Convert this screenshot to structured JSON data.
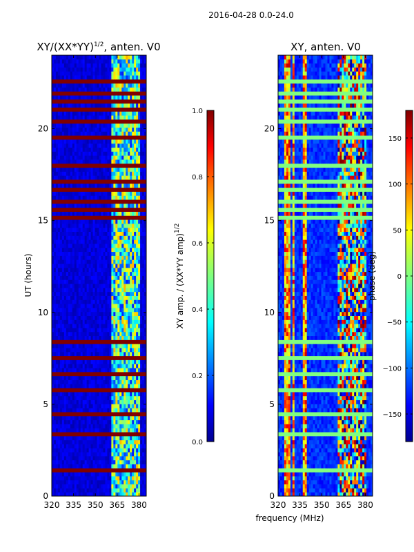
{
  "suptitle": "2016-04-28 0.0-24.0",
  "shared_xlabel": "frequency (MHz)",
  "chart_data": [
    {
      "type": "heatmap",
      "title_main": "XY/(XX*YY)",
      "title_sup": "1/2",
      "title_rest": ", anten. V0",
      "xlabel": "",
      "ylabel": "UT (hours)",
      "xlim": [
        320,
        385
      ],
      "ylim": [
        0,
        24
      ],
      "xticks": [
        320,
        335,
        350,
        365,
        380
      ],
      "yticks": [
        0,
        5,
        10,
        15,
        20
      ],
      "colormap": "jet",
      "colorbar": {
        "label_main": "XY amp. / (XX*YY amp)",
        "label_sup": "1/2",
        "range": [
          0.0,
          1.0
        ],
        "ticks": [
          "0.0",
          "0.2",
          "0.4",
          "0.6",
          "0.8",
          "1.0"
        ],
        "tick_values": [
          0.0,
          0.2,
          0.4,
          0.6,
          0.8,
          1.0
        ]
      },
      "flagged_hours": [
        1.5,
        3.4,
        4.4,
        5.8,
        6.7,
        7.5,
        8.3,
        15.2,
        15.6,
        16.0,
        16.6,
        17.2,
        18.0,
        19.5,
        20.5,
        21.0,
        21.5,
        22.0,
        22.5
      ],
      "band_edges_mhz": [
        361,
        365,
        369,
        373,
        377
      ]
    },
    {
      "type": "heatmap",
      "title_main": "XY, anten. V0",
      "xlabel": "",
      "ylabel": "",
      "xlim": [
        320,
        385
      ],
      "ylim": [
        0,
        24
      ],
      "xticks": [
        320,
        335,
        350,
        365,
        380
      ],
      "yticks": [
        0,
        5,
        10,
        15,
        20
      ],
      "colormap": "jet",
      "colorbar": {
        "label_main": "phase (deg)",
        "range": [
          -180,
          180
        ],
        "ticks": [
          "−150",
          "−100",
          "−50",
          "0",
          "50",
          "100",
          "150"
        ],
        "tick_values": [
          -150,
          -100,
          -50,
          0,
          50,
          100,
          150
        ]
      },
      "flagged_hours": [
        1.5,
        3.4,
        4.4,
        5.8,
        6.7,
        7.5,
        8.3,
        15.2,
        15.6,
        16.0,
        16.6,
        17.2,
        18.0,
        19.5,
        20.5,
        21.0,
        21.5,
        22.0,
        22.5
      ],
      "band_edges_mhz": [
        361,
        365,
        369,
        373,
        377
      ]
    }
  ],
  "colors": {
    "flag": "#800000",
    "low": "#00008f",
    "mid": "#7fff7f",
    "high": "#800000"
  }
}
